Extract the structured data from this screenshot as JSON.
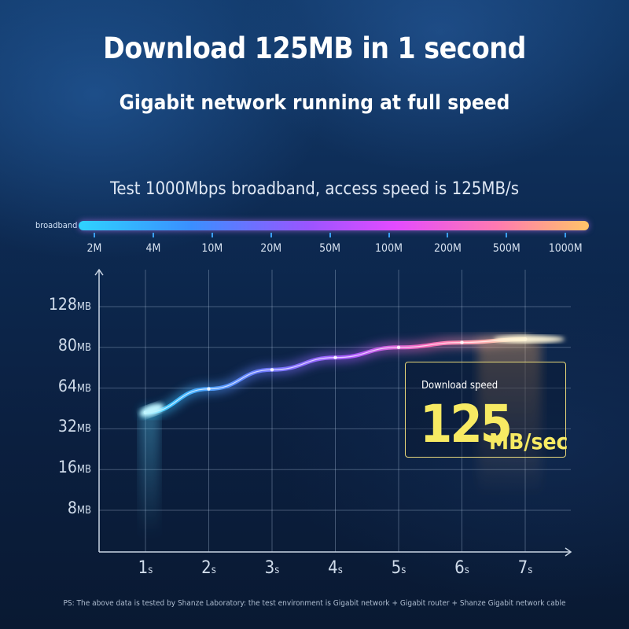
{
  "header": {
    "title": "Download 125MB in 1 second",
    "subtitle": "Gigabit network running at full speed",
    "test_line": "Test 1000Mbps broadband, access speed is 125MB/s"
  },
  "broadband": {
    "label": "broadband",
    "ticks": [
      "2M",
      "4M",
      "10M",
      "20M",
      "50M",
      "100M",
      "200M",
      "500M",
      "1000M"
    ]
  },
  "speed_box": {
    "label": "Download speed",
    "value": "125",
    "unit": "MB/sec"
  },
  "chart_data": {
    "type": "line",
    "x_ticks": [
      {
        "v": "1",
        "u": "s"
      },
      {
        "v": "2",
        "u": "s"
      },
      {
        "v": "3",
        "u": "s"
      },
      {
        "v": "4",
        "u": "s"
      },
      {
        "v": "5",
        "u": "s"
      },
      {
        "v": "6",
        "u": "s"
      },
      {
        "v": "7",
        "u": "s"
      }
    ],
    "y_ticks": [
      {
        "v": "8",
        "u": "MB"
      },
      {
        "v": "16",
        "u": "MB"
      },
      {
        "v": "32",
        "u": "MB"
      },
      {
        "v": "64",
        "u": "MB"
      },
      {
        "v": "80",
        "u": "MB"
      },
      {
        "v": "128",
        "u": "MB"
      }
    ],
    "series": [
      {
        "x": [
          1,
          2,
          3,
          4,
          5,
          6,
          7
        ],
        "y_level": [
          3.4,
          3.98,
          4.45,
          4.75,
          5.0,
          5.12,
          5.2
        ]
      }
    ],
    "grid": true,
    "colors": {
      "start": "#2fd3ff",
      "mid": "#9a55ff",
      "end": "#ffd9a0",
      "box_border": "#e8d87a",
      "accent": "#f7ea63"
    }
  },
  "footnote": "PS: The above data is tested by Shanze Laboratory: the test environment is Gigabit network + Gigabit router + Shanze Gigabit network cable"
}
